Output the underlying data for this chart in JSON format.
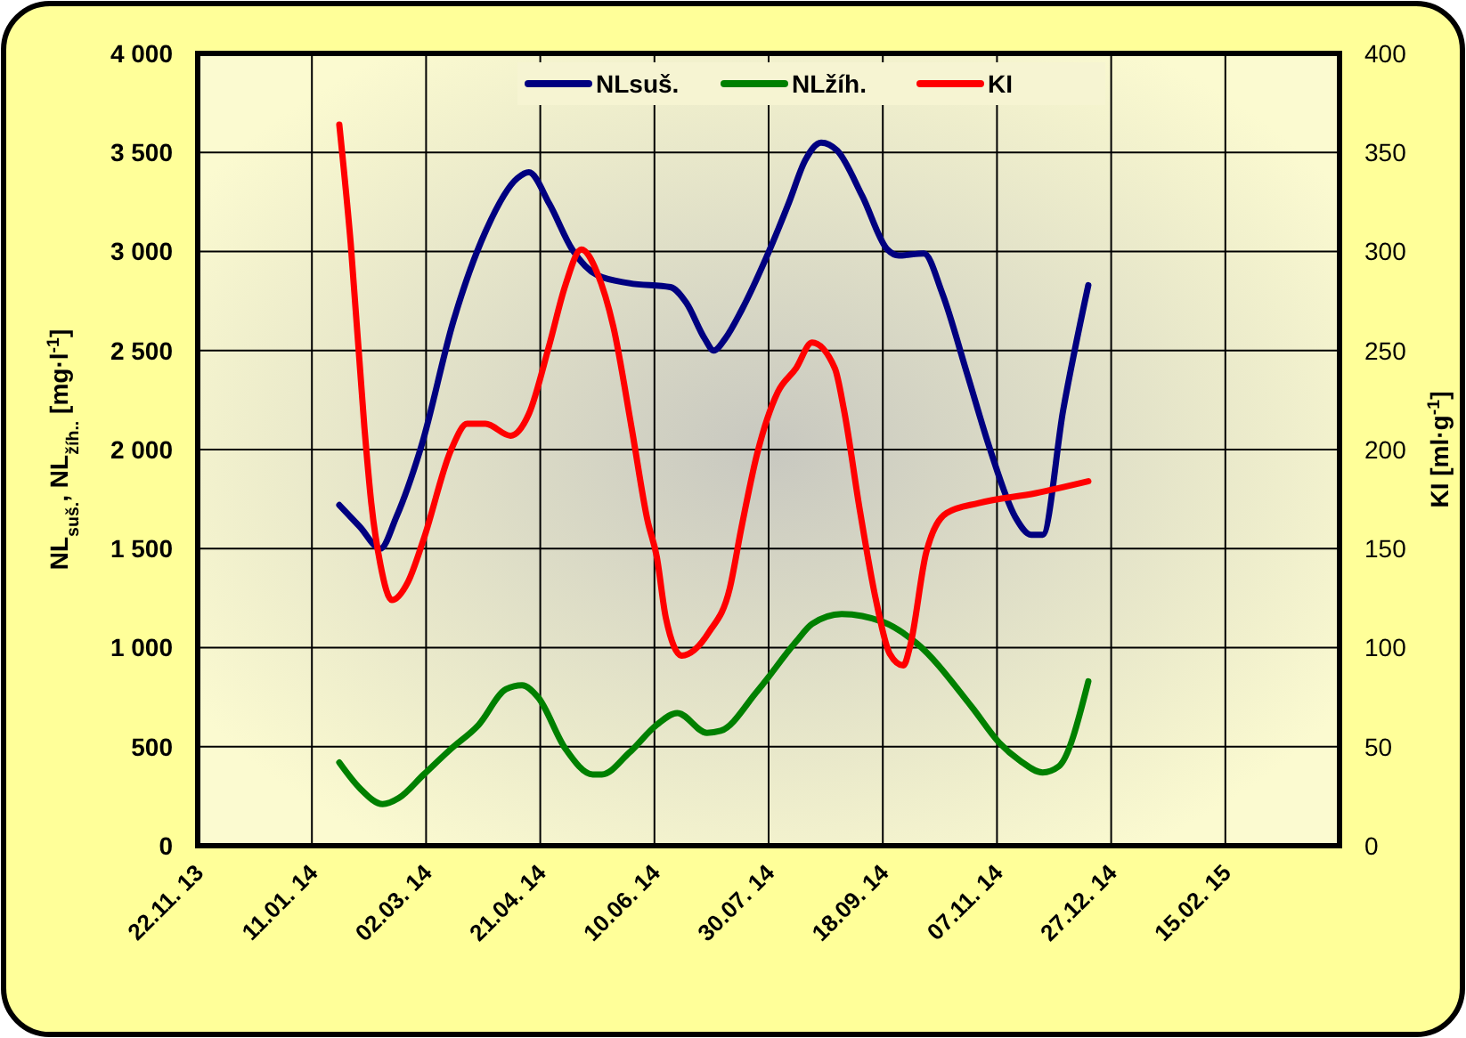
{
  "chart_data": {
    "type": "line",
    "xlabel": null,
    "ylabel": "NL$_{suš.}$, NL$_{žíh..}$ [mg·l$^{-1}$]",
    "y2label": "KI [ml·g$^{-1}$]",
    "xlim": [
      "2013-11-22",
      "2015-04-06"
    ],
    "xticks": [
      {
        "value": "2013-11-22",
        "label": "22.11. 13"
      },
      {
        "value": "2014-01-11",
        "label": "11.01. 14"
      },
      {
        "value": "2014-03-02",
        "label": "02.03. 14"
      },
      {
        "value": "2014-04-21",
        "label": "21.04. 14"
      },
      {
        "value": "2014-06-10",
        "label": "10.06. 14"
      },
      {
        "value": "2014-07-30",
        "label": "30.07. 14"
      },
      {
        "value": "2014-09-18",
        "label": "18.09. 14"
      },
      {
        "value": "2014-11-07",
        "label": "07.11. 14"
      },
      {
        "value": "2014-12-27",
        "label": "27.12. 14"
      },
      {
        "value": "2015-02-15",
        "label": "15.02. 15"
      },
      {
        "value": "2015-04-06",
        "label": null
      }
    ],
    "ylim": [
      0,
      4000
    ],
    "yticks": [
      0,
      {
        "value": 500,
        "label": "500"
      },
      {
        "value": 1000,
        "label": "1 000"
      },
      {
        "value": 1500,
        "label": "1 500"
      },
      {
        "value": 2000,
        "label": "2 000"
      },
      {
        "value": 2500,
        "label": "2 500"
      },
      {
        "value": 3000,
        "label": "3 000"
      },
      {
        "value": 3500,
        "label": "3 500"
      },
      {
        "value": 4000,
        "label": "4 000"
      }
    ],
    "y2lim": [
      0,
      400
    ],
    "y2ticks": [
      0,
      50,
      100,
      150,
      200,
      250,
      300,
      350,
      400
    ],
    "grid": true,
    "legend": "top",
    "marker": "none",
    "line_style": "solid",
    "series": [
      {
        "name": "NLsuš.",
        "color": "#000080",
        "x": [
          "2014-01-23",
          "2014-02-01",
          "2014-02-10",
          "2014-02-17",
          "2014-02-28",
          "2014-03-14",
          "2014-03-28",
          "2014-04-11",
          "2014-04-16",
          "2014-04-25",
          "2014-05-05",
          "2014-05-16",
          "2014-05-30",
          "2014-06-17",
          "2014-06-24",
          "2014-07-02",
          "2014-07-06",
          "2014-07-11",
          "2014-07-18",
          "2014-07-29",
          "2014-08-08",
          "2014-08-15",
          "2014-08-22",
          "2014-08-29",
          "2014-09-09",
          "2014-09-20",
          "2014-09-25",
          "2014-10-06",
          "2014-10-14",
          "2014-10-25",
          "2014-11-04",
          "2014-11-15",
          "2014-11-22",
          "2014-11-27",
          "2014-12-06",
          "2014-12-17"
        ],
        "values": [
          1720,
          1610,
          1500,
          1660,
          2020,
          2650,
          3100,
          3370,
          3400,
          3240,
          3010,
          2880,
          2840,
          2820,
          2740,
          2560,
          2500,
          2560,
          2700,
          2970,
          3250,
          3460,
          3550,
          3510,
          3280,
          3010,
          2980,
          2990,
          2790,
          2380,
          2000,
          1660,
          1570,
          1570,
          2200,
          2830
        ]
      },
      {
        "name": "NLžíh.",
        "color": "#008000",
        "x": [
          "2014-01-23",
          "2014-02-01",
          "2014-02-11",
          "2014-02-18",
          "2014-03-01",
          "2014-03-13",
          "2014-03-25",
          "2014-04-06",
          "2014-04-13",
          "2014-04-20",
          "2014-05-02",
          "2014-05-14",
          "2014-05-18",
          "2014-05-30",
          "2014-06-11",
          "2014-06-20",
          "2014-07-03",
          "2014-07-09",
          "2014-07-25",
          "2014-08-11",
          "2014-08-18",
          "2014-08-31",
          "2014-09-18",
          "2014-10-03",
          "2014-10-27",
          "2014-11-08",
          "2014-11-17",
          "2014-11-27",
          "2014-12-04",
          "2014-12-17"
        ],
        "values": [
          420,
          290,
          210,
          240,
          360,
          490,
          610,
          790,
          810,
          750,
          490,
          360,
          360,
          470,
          610,
          670,
          570,
          580,
          780,
          1030,
          1120,
          1170,
          1130,
          1020,
          700,
          520,
          430,
          370,
          400,
          830
        ]
      },
      {
        "name": "KI",
        "color": "#ff0000",
        "axis": "y2",
        "x": [
          "2014-01-23",
          "2014-01-28",
          "2014-02-03",
          "2014-02-06",
          "2014-02-10",
          "2014-02-15",
          "2014-02-22",
          "2014-03-01",
          "2014-03-13",
          "2014-03-20",
          "2014-03-28",
          "2014-04-08",
          "2014-04-16",
          "2014-04-25",
          "2014-05-02",
          "2014-05-09",
          "2014-05-16",
          "2014-05-23",
          "2014-05-31",
          "2014-06-07",
          "2014-06-11",
          "2014-06-15",
          "2014-06-22",
          "2014-07-04",
          "2014-07-13",
          "2014-07-18",
          "2014-07-25",
          "2014-08-03",
          "2014-08-11",
          "2014-08-18",
          "2014-08-28",
          "2014-09-01",
          "2014-09-08",
          "2014-09-15",
          "2014-09-21",
          "2014-09-27",
          "2014-09-30",
          "2014-10-07",
          "2014-10-16",
          "2014-10-30",
          "2014-11-24",
          "2014-12-17"
        ],
        "values": [
          364,
          304,
          211,
          173,
          142,
          124,
          133,
          155,
          200,
          213,
          213,
          207,
          218,
          253,
          283,
          301,
          289,
          262,
          211,
          164,
          146,
          115,
          96,
          108,
          130,
          160,
          198,
          229,
          241,
          254,
          241,
          220,
          169,
          124,
          97,
          91,
          101,
          148,
          168,
          173,
          178,
          184
        ]
      }
    ]
  }
}
